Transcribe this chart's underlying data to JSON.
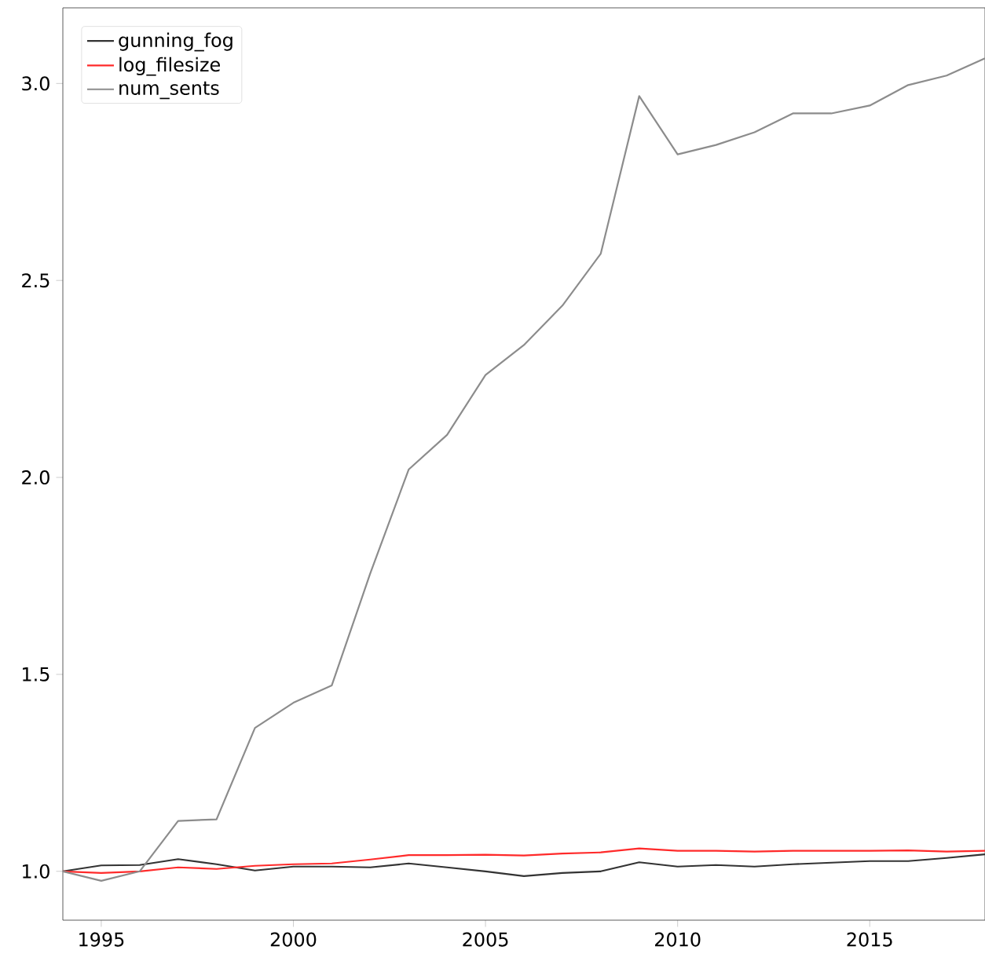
{
  "chart_data": {
    "type": "line",
    "x": [
      1994,
      1995,
      1996,
      1997,
      1998,
      1999,
      2000,
      2001,
      2002,
      2003,
      2004,
      2005,
      2006,
      2007,
      2008,
      2009,
      2010,
      2011,
      2012,
      2013,
      2014,
      2015,
      2016,
      2017,
      2018
    ],
    "series": [
      {
        "name": "gunning_fog",
        "color": "#333333",
        "values": [
          1.0,
          1.015,
          1.016,
          1.031,
          1.018,
          1.002,
          1.012,
          1.012,
          1.01,
          1.02,
          1.01,
          1.0,
          0.988,
          0.996,
          1.0,
          1.023,
          1.012,
          1.016,
          1.012,
          1.018,
          1.022,
          1.026,
          1.026,
          1.034,
          1.043
        ]
      },
      {
        "name": "log_filesize",
        "color": "#ff2a2a",
        "values": [
          1.0,
          0.996,
          1.0,
          1.01,
          1.006,
          1.014,
          1.018,
          1.02,
          1.03,
          1.041,
          1.041,
          1.042,
          1.04,
          1.045,
          1.048,
          1.058,
          1.052,
          1.052,
          1.05,
          1.052,
          1.052,
          1.052,
          1.053,
          1.05,
          1.052
        ]
      },
      {
        "name": "num_sents",
        "color": "#8c8c8c",
        "values": [
          1.0,
          0.976,
          1.0,
          1.128,
          1.132,
          1.364,
          1.428,
          1.472,
          1.756,
          2.02,
          2.108,
          2.26,
          2.336,
          2.436,
          2.568,
          2.968,
          2.82,
          2.844,
          2.876,
          2.924,
          2.924,
          2.944,
          2.996,
          3.02,
          3.064
        ]
      }
    ],
    "xlim": [
      1994,
      2018
    ],
    "ylim": [
      0.876,
      3.192
    ],
    "xticks": [
      1995,
      2000,
      2005,
      2010,
      2015
    ],
    "yticks": [
      {
        "value": 1.0,
        "label": "1.0"
      },
      {
        "value": 1.5,
        "label": "1.5"
      },
      {
        "value": 2.0,
        "label": "2.0"
      },
      {
        "value": 2.5,
        "label": "2.5"
      },
      {
        "value": 3.0,
        "label": "3.0"
      }
    ],
    "legend": "top left",
    "grid": false,
    "marker": "none",
    "line_style": "solid"
  }
}
